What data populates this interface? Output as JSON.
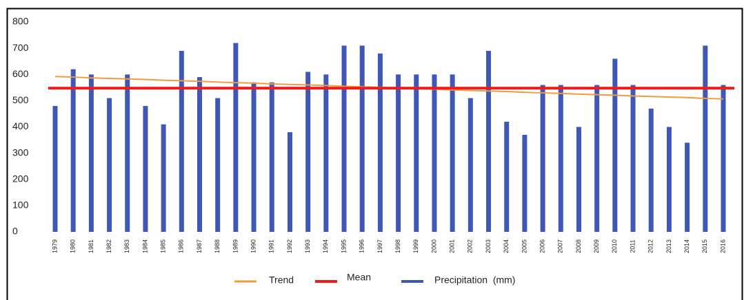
{
  "chart_data": {
    "type": "bar",
    "categories": [
      "1979",
      "1980",
      "1981",
      "1982",
      "1983",
      "1984",
      "1985",
      "1986",
      "1987",
      "1988",
      "1989",
      "1990",
      "1991",
      "1992",
      "1993",
      "1994",
      "1995",
      "1996",
      "1997",
      "1998",
      "1999",
      "2000",
      "2001",
      "2002",
      "2003",
      "2004",
      "2005",
      "2006",
      "2007",
      "2008",
      "2009",
      "2010",
      "2011",
      "2012",
      "2013",
      "2014",
      "2015",
      "2016"
    ],
    "series": [
      {
        "name": "Trend",
        "color": "#f39a3a",
        "type": "line",
        "values": [
          592,
          590,
          587,
          585,
          583,
          581,
          578,
          576,
          574,
          571,
          569,
          567,
          564,
          562,
          560,
          558,
          555,
          553,
          551,
          548,
          546,
          544,
          541,
          539,
          537,
          535,
          532,
          530,
          528,
          525,
          523,
          521,
          518,
          516,
          514,
          512,
          509,
          507
        ]
      },
      {
        "name": "Mean",
        "color": "#ee1c1c",
        "type": "hline",
        "value": 548
      },
      {
        "name": "Precipitation  (mm)",
        "color": "#3f57b8",
        "type": "bar",
        "values": [
          480,
          620,
          600,
          510,
          600,
          480,
          410,
          690,
          590,
          510,
          720,
          570,
          570,
          380,
          610,
          600,
          710,
          710,
          680,
          600,
          600,
          600,
          600,
          510,
          690,
          420,
          370,
          560,
          560,
          400,
          560,
          660,
          560,
          470,
          400,
          340,
          710,
          560
        ]
      }
    ],
    "ylim": [
      0,
      800
    ],
    "yticks": [
      0,
      100,
      200,
      300,
      400,
      500,
      600,
      700,
      800
    ],
    "grid": false
  }
}
